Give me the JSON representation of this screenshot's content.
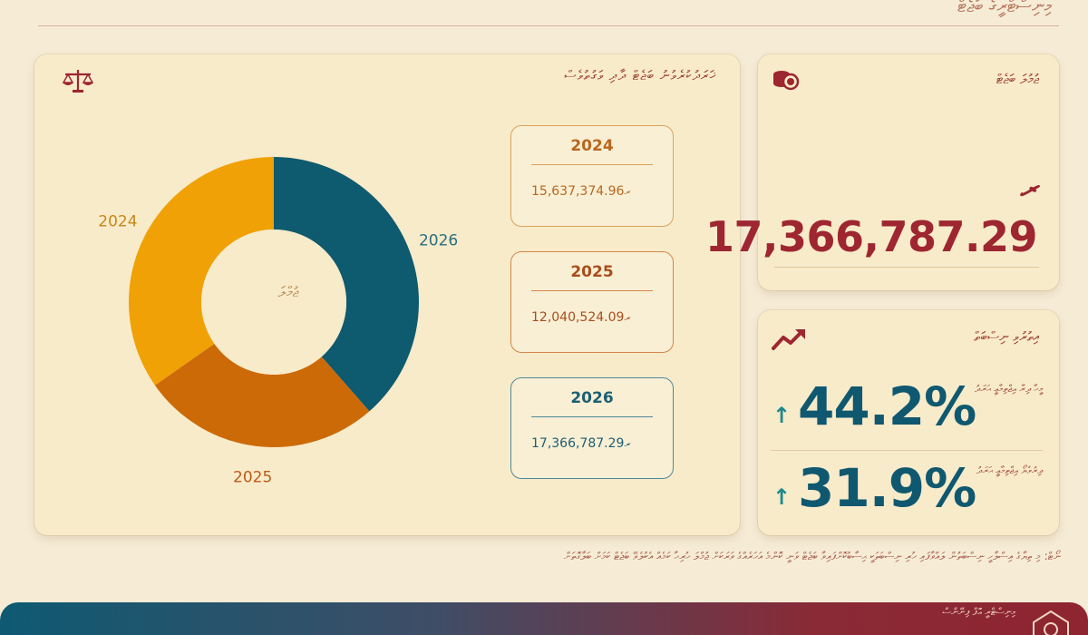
{
  "header": {
    "title": "މިނިސްޓްރީގެ ބަޖެޓް"
  },
  "main": {
    "title": "ޚަރަދުކުރެވުނު ބަޖެޓް ދާދި ވަގުތުވެސް",
    "center_label": "ޖުމްލަ",
    "icon": "scale-icon"
  },
  "year_boxes": [
    {
      "year": "2024",
      "amount": "15,637,374.96",
      "currency": "ރ",
      "color": "#d9a35a",
      "text_color": "#b8671f"
    },
    {
      "year": "2025",
      "amount": "12,040,524.09",
      "currency": "ރ",
      "color": "#d3874a",
      "text_color": "#a84d1c"
    },
    {
      "year": "2026",
      "amount": "17,366,787.29",
      "currency": "ރ",
      "color": "#4d8a9a",
      "text_color": "#1c5f74"
    }
  ],
  "chart_data": {
    "type": "pie",
    "style": "donut",
    "slices": [
      {
        "label": "2026",
        "value": 17366787.29,
        "color": "#0e5a6f"
      },
      {
        "label": "2025",
        "value": 12040524.09,
        "color": "#cc6a08"
      },
      {
        "label": "2024",
        "value": 15637374.96,
        "color": "#f0a106"
      }
    ],
    "center_label": "ޖުމްލަ"
  },
  "total": {
    "title": "ޖުމުލަ ބަޖެޓް",
    "currency_symbol": "ރ",
    "value": "17,366,787.29",
    "icon": "coins-icon"
  },
  "growth": {
    "title": "އިތުރުވި ނިސްބަތް",
    "icon": "trend-up-icon",
    "items": [
      {
        "arrow": "↑",
        "value": "44.2%",
        "label": "މީހާ ދިރާ އިޖްތިމާޢީ ޙަރަދު"
      },
      {
        "arrow": "↑",
        "value": "31.9%",
        "label": "ދިރުވެޔޯ އިޖްތިމާޢީ ޙަރަދު"
      }
    ]
  },
  "footnote": "ނޯޓް: މި ތިޔާގެ އިސްލާހީ ނިސްބަތުން ލައްވާފައި ހުރި ނިސްބަތަކީ ޙިސާބުކޮށްފައިވާ ބަޖެޓް ވަނީ ކޮންމެ އަހަރެއްގެ ވަރަކަށް ޖުމްލަ ހުރިހާ ކަމެއް އެކުލެވޭ ބަޖެޓް ކަމަށް ބަލާގޮތަށް",
  "footer": {
    "text": "މިނިސްޓްރީ އޮފް ފިނޭންސް",
    "logo": "emblem-logo"
  }
}
